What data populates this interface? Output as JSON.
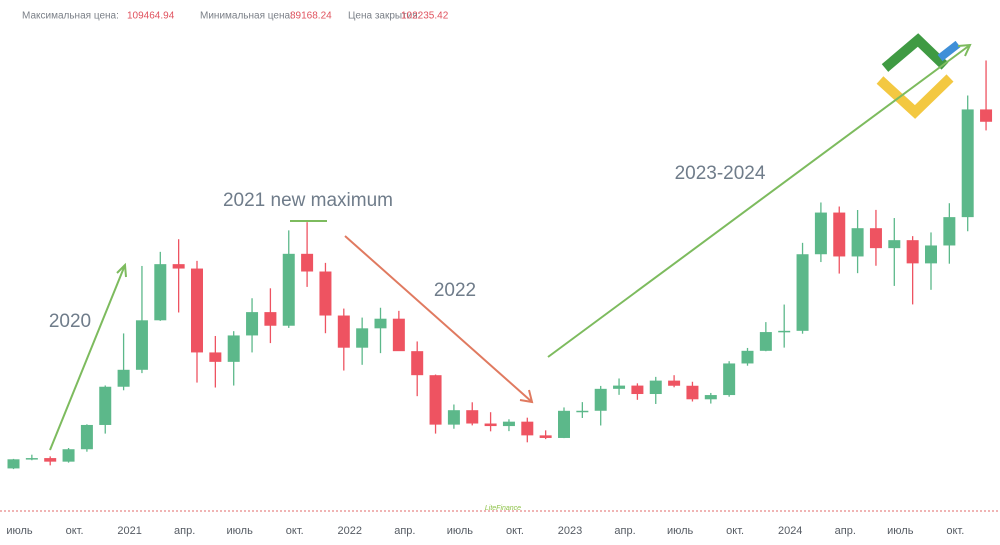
{
  "chart_data": {
    "type": "candlestick",
    "header": [
      {
        "label": "Максимальная цена:",
        "value": 109464.94
      },
      {
        "label": "Минимальная цена:",
        "value": 89168.24
      },
      {
        "label": "Цена закрытия:",
        "value": 102235.42
      }
    ],
    "annotations": [
      "2020",
      "2021 new maximum",
      "2022",
      "2023-2024"
    ],
    "watermark": "LiteFinance",
    "up_color": "#5cb88a",
    "down_color": "#ee5361",
    "ylim": [
      0,
      123000
    ],
    "categories": [
      "июль",
      null,
      null,
      "окт.",
      null,
      null,
      "2021",
      null,
      null,
      "апр.",
      null,
      null,
      "июль",
      null,
      null,
      "окт.",
      null,
      null,
      "2022",
      null,
      null,
      "апр.",
      null,
      null,
      "июль",
      null,
      null,
      "окт.",
      null,
      null,
      "2023",
      null,
      null,
      "апр.",
      null,
      null,
      "июль",
      null,
      null,
      "окт.",
      null,
      null,
      "2024",
      null,
      null,
      "апр.",
      null,
      null,
      "июль",
      null,
      null,
      "окт.",
      null,
      null
    ],
    "open": [
      9135,
      11350,
      11650,
      10780,
      13800,
      19700,
      28990,
      33110,
      45140,
      58790,
      57720,
      37330,
      35040,
      41460,
      47130,
      43820,
      61300,
      57000,
      46300,
      38480,
      43190,
      45530,
      37640,
      31800,
      19780,
      23290,
      20050,
      19430,
      20500,
      17170,
      16540,
      23140,
      23150,
      28480,
      29270,
      27220,
      30480,
      29230,
      25940,
      26970,
      34650,
      37720,
      42280,
      42580,
      61200,
      71330,
      60660,
      67530,
      62680,
      64620,
      58980,
      63330,
      70220,
      96400
    ],
    "high": [
      11450,
      12470,
      12070,
      14100,
      19860,
      29300,
      41950,
      58350,
      61780,
      64850,
      59590,
      41330,
      42500,
      50500,
      52920,
      67000,
      69000,
      59100,
      47990,
      45800,
      48190,
      47440,
      40000,
      31960,
      24670,
      25210,
      22800,
      21080,
      21470,
      18390,
      23960,
      25250,
      29190,
      31000,
      29820,
      31390,
      31800,
      30200,
      27480,
      35200,
      38420,
      44700,
      48970,
      63970,
      73780,
      72800,
      71950,
      71980,
      70000,
      65600,
      66500,
      73600,
      99800,
      108300
    ],
    "low": [
      8970,
      11120,
      9880,
      10540,
      13200,
      17600,
      28130,
      32300,
      45000,
      47040,
      30000,
      28800,
      29280,
      37330,
      39600,
      43290,
      53260,
      42000,
      32930,
      34320,
      37160,
      37700,
      26700,
      17600,
      18780,
      19600,
      18150,
      18200,
      15480,
      16260,
      16500,
      21400,
      19570,
      27020,
      25810,
      24800,
      28860,
      25400,
      24900,
      26560,
      34100,
      37620,
      38500,
      41880,
      59300,
      56500,
      56600,
      58400,
      53500,
      49000,
      52550,
      58900,
      66800,
      91300
    ],
    "close": [
      11350,
      11650,
      10780,
      13800,
      19700,
      28990,
      33110,
      45140,
      58790,
      57720,
      37330,
      35040,
      41460,
      47130,
      43820,
      61300,
      57000,
      46300,
      38480,
      43190,
      45530,
      37640,
      31800,
      19780,
      23290,
      20050,
      19430,
      20500,
      17170,
      16540,
      23140,
      23150,
      28480,
      29270,
      27220,
      30480,
      29230,
      25940,
      26970,
      34650,
      37720,
      42280,
      42580,
      61200,
      71330,
      60660,
      67530,
      62680,
      64620,
      58980,
      63330,
      70220,
      96400,
      93400
    ]
  }
}
